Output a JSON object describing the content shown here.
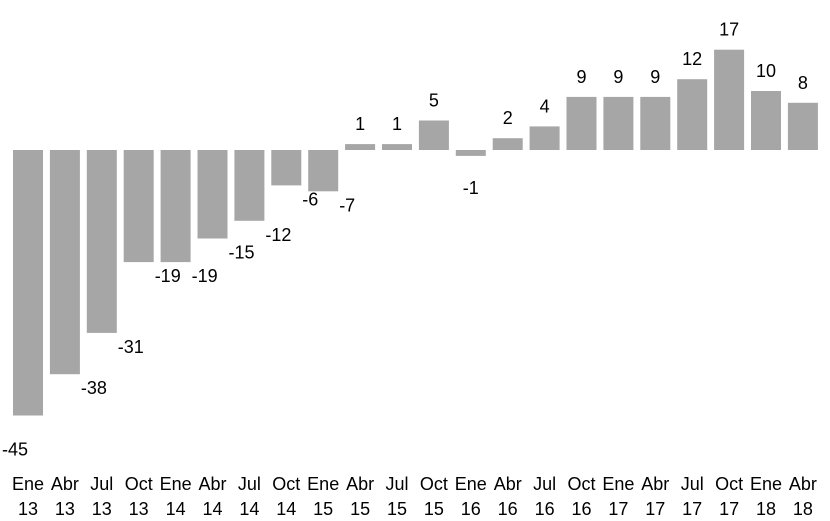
{
  "chart_data": {
    "type": "bar",
    "title": "",
    "xlabel": "",
    "ylabel": "",
    "ylim": [
      -45,
      17
    ],
    "grid": false,
    "legend": "none",
    "bar_color": "#a6a6a6",
    "categories": [
      [
        "Ene",
        "13"
      ],
      [
        "Abr",
        "13"
      ],
      [
        "Jul",
        "13"
      ],
      [
        "Oct",
        "13"
      ],
      [
        "Ene",
        "14"
      ],
      [
        "Abr",
        "14"
      ],
      [
        "Jul",
        "14"
      ],
      [
        "Oct",
        "14"
      ],
      [
        "Ene",
        "15"
      ],
      [
        "Abr",
        "15"
      ],
      [
        "Jul",
        "15"
      ],
      [
        "Oct",
        "15"
      ],
      [
        "Ene",
        "16"
      ],
      [
        "Abr",
        "16"
      ],
      [
        "Jul",
        "16"
      ],
      [
        "Oct",
        "16"
      ],
      [
        "Ene",
        "17"
      ],
      [
        "Abr",
        "17"
      ],
      [
        "Jul",
        "17"
      ],
      [
        "Oct",
        "17"
      ],
      [
        "Ene",
        "18"
      ],
      [
        "Abr",
        "18"
      ]
    ],
    "values": [
      -45,
      -38,
      -31,
      -19,
      -19,
      -15,
      -12,
      -6,
      -7,
      1,
      1,
      5,
      -1,
      2,
      4,
      9,
      9,
      9,
      12,
      17,
      10,
      8
    ],
    "data_labels": [
      "-45",
      "-38",
      "-31",
      "-19",
      "-19",
      "-15",
      "-12",
      "-6",
      "-7",
      "1",
      "1",
      "5",
      "-1",
      "2",
      "4",
      "9",
      "9",
      "9",
      "12",
      "17",
      "10",
      "8"
    ]
  }
}
